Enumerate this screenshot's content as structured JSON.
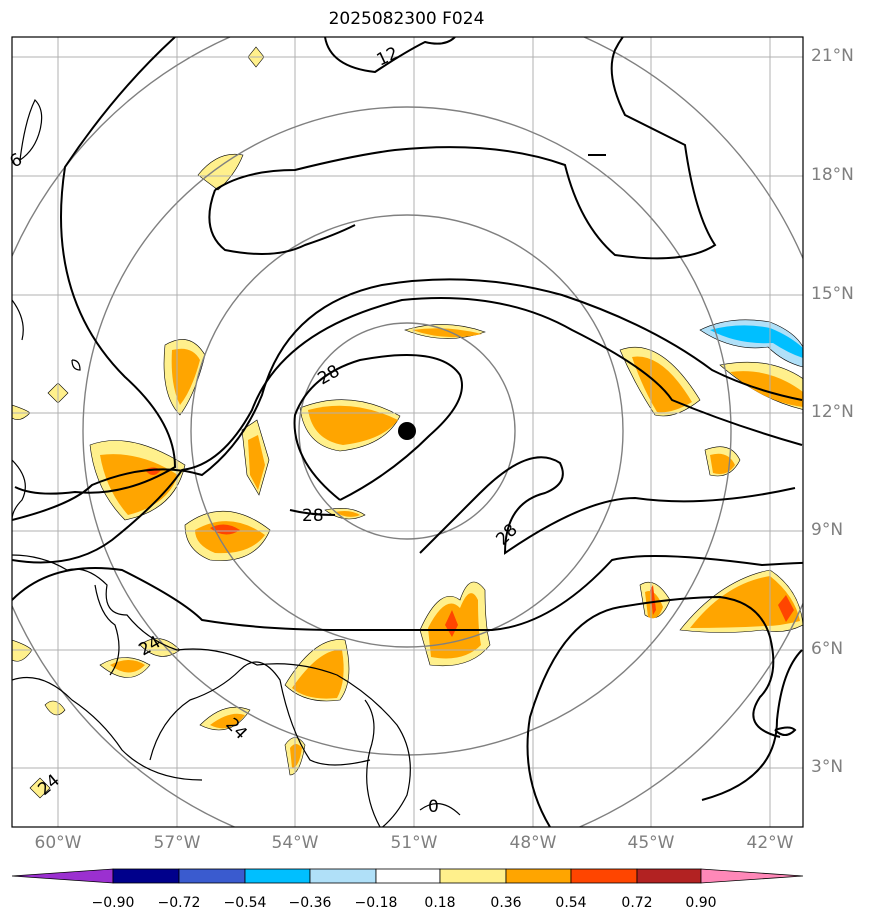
{
  "title": "2025082300 F024",
  "map": {
    "lat_labels": [
      "21°N",
      "18°N",
      "15°N",
      "12°N",
      "9°N",
      "6°N",
      "3°N"
    ],
    "lon_labels": [
      "60°W",
      "57°W",
      "54°W",
      "51°W",
      "48°W",
      "45°W",
      "42°W"
    ],
    "storm_center": {
      "lat": 11.5,
      "lon": -51.0
    },
    "range_rings": "concentric",
    "contour_labels": [
      "12",
      "28",
      "28",
      "28",
      "24",
      "24",
      "24",
      "0",
      "6"
    ]
  },
  "colorbar": {
    "ticks": [
      "−0.90",
      "−0.72",
      "−0.54",
      "−0.36",
      "−0.18",
      "0.18",
      "0.36",
      "0.54",
      "0.72",
      "0.90"
    ],
    "colors": [
      "#9b30d0",
      "#00008b",
      "#3a5bcf",
      "#00bfff",
      "#b0e0f8",
      "#ffffff",
      "#fff08c",
      "#ffa500",
      "#ff4500",
      "#b22222",
      "#ff88b8"
    ]
  },
  "colors": {
    "grid": "#b0b0b0",
    "ring": "#808080",
    "contour": "#000000",
    "coast": "#000000",
    "shade_yellow": "#fff08c",
    "shade_orange": "#ffa500",
    "shade_red": "#ff4500",
    "shade_lightblue": "#b0e0f8",
    "shade_blue": "#00bfff"
  }
}
